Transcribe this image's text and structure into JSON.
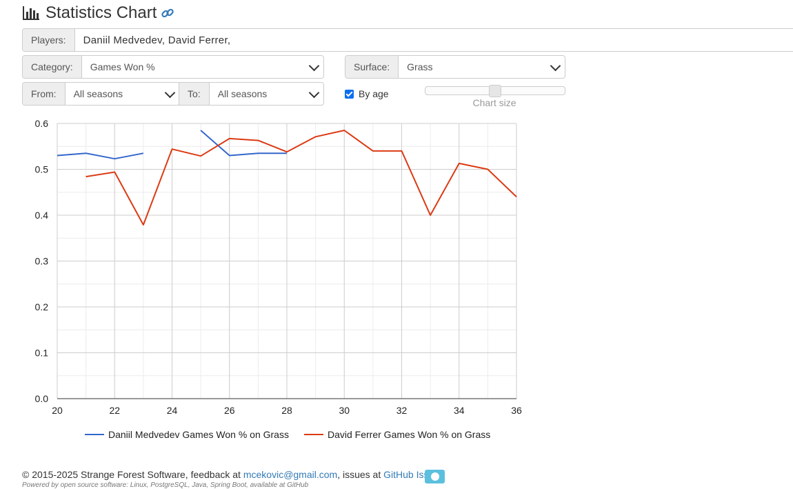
{
  "header": {
    "title": "Statistics Chart"
  },
  "players": {
    "label": "Players:",
    "value": "Daniil Medvedev, David Ferrer,"
  },
  "category": {
    "label": "Category:",
    "value": "Games Won %"
  },
  "surface": {
    "label": "Surface:",
    "value": "Grass"
  },
  "from": {
    "label": "From:",
    "value": "All seasons"
  },
  "to": {
    "label": "To:",
    "value": "All seasons"
  },
  "by_age": {
    "label": "By age",
    "checked": true
  },
  "chart_size": {
    "label": "Chart size",
    "value": 0.5
  },
  "chart_data": {
    "type": "line",
    "x_range": [
      20,
      36
    ],
    "x_ticks": [
      "20",
      "22",
      "24",
      "26",
      "28",
      "30",
      "32",
      "34",
      "36"
    ],
    "y_range": [
      0,
      0.6
    ],
    "y_ticks": [
      "0.0",
      "0.1",
      "0.2",
      "0.3",
      "0.4",
      "0.5",
      "0.6"
    ],
    "grid": true,
    "legend_position": "bottom",
    "series": [
      {
        "name": "Daniil Medvedev Games Won % on Grass",
        "color": "#3366cc",
        "segments": [
          [
            [
              20,
              0.53
            ],
            [
              21,
              0.535
            ],
            [
              22,
              0.523
            ],
            [
              23,
              0.535
            ]
          ],
          [
            [
              25,
              0.585
            ],
            [
              26,
              0.53
            ],
            [
              27,
              0.535
            ],
            [
              28,
              0.535
            ]
          ]
        ]
      },
      {
        "name": "David Ferrer Games Won % on Grass",
        "color": "#dc3912",
        "segments": [
          [
            [
              21,
              0.484
            ],
            [
              22,
              0.494
            ],
            [
              23,
              0.379
            ],
            [
              24,
              0.544
            ],
            [
              25,
              0.529
            ],
            [
              26,
              0.567
            ],
            [
              27,
              0.563
            ],
            [
              28,
              0.538
            ],
            [
              29,
              0.571
            ],
            [
              30,
              0.585
            ],
            [
              31,
              0.54
            ],
            [
              32,
              0.54
            ],
            [
              33,
              0.4
            ],
            [
              34,
              0.513
            ],
            [
              35,
              0.5
            ],
            [
              36,
              0.44
            ]
          ]
        ]
      }
    ]
  },
  "footer": {
    "copyright": "© 2015-2025 Strange Forest Software, feedback at",
    "email": "mcekovic@gmail.com",
    "issues_text": ", issues at",
    "issues_link": "GitHub Issues",
    "powered": "Powered by open source software: Linux, PostgreSQL, Java, Spring Boot, available at GitHub"
  }
}
